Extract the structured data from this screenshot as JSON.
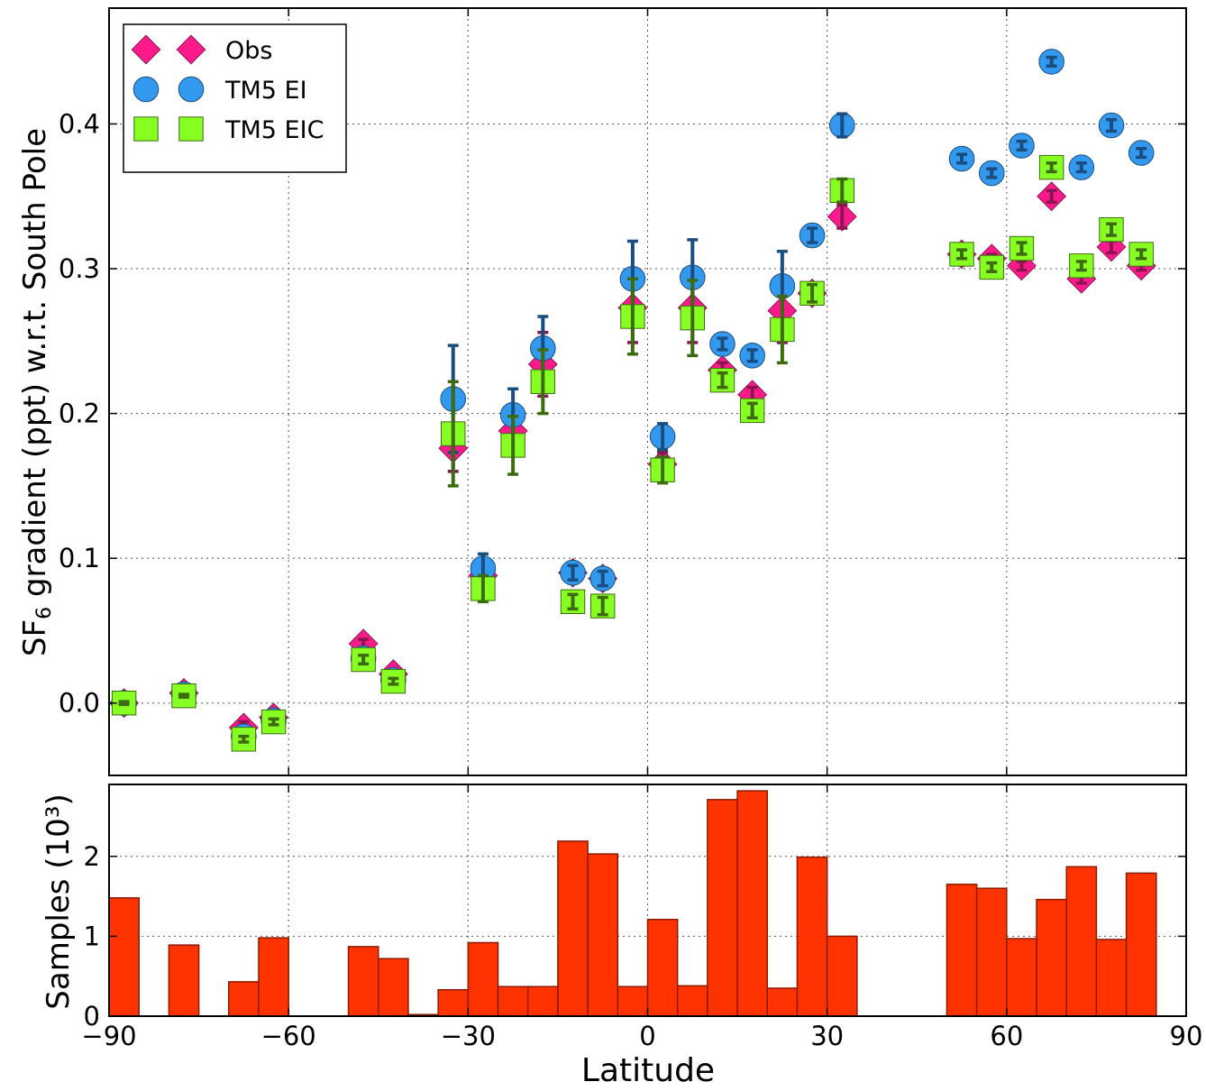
{
  "chart_data": [
    {
      "type": "scatter",
      "ylabel_pre": "SF",
      "ylabel_sub": "6",
      "ylabel_post": " gradient (ppt) w.r.t. South Pole",
      "xlim": [
        -90,
        90
      ],
      "ylim": [
        -0.05,
        0.48
      ],
      "yticks": [
        0.0,
        0.1,
        0.2,
        0.3,
        0.4
      ],
      "ytick_labels": [
        "0.0",
        "0.1",
        "0.2",
        "0.3",
        "0.4"
      ],
      "grid": true,
      "legend_position": "top-left",
      "series": [
        {
          "name": "Obs",
          "marker": "diamond",
          "color": "#ff1a8c",
          "edge": "#8b1550",
          "err_color": "#8b1550",
          "points": [
            {
              "x": -87.5,
              "y": 0.0,
              "e": 0.002
            },
            {
              "x": -77.5,
              "y": 0.007,
              "e": 0.002
            },
            {
              "x": -67.5,
              "y": -0.017,
              "e": 0.004
            },
            {
              "x": -62.5,
              "y": -0.01,
              "e": 0.003
            },
            {
              "x": -47.5,
              "y": 0.041,
              "e": 0.003
            },
            {
              "x": -42.5,
              "y": 0.02,
              "e": 0.002
            },
            {
              "x": -32.5,
              "y": 0.176,
              "e": 0.016
            },
            {
              "x": -27.5,
              "y": 0.088,
              "e": 0.006
            },
            {
              "x": -22.5,
              "y": 0.188,
              "e": 0.008
            },
            {
              "x": -17.5,
              "y": 0.234,
              "e": 0.022
            },
            {
              "x": -12.5,
              "y": 0.09,
              "e": 0.004
            },
            {
              "x": -7.5,
              "y": 0.086,
              "e": 0.004
            },
            {
              "x": -2.5,
              "y": 0.273,
              "e": 0.024
            },
            {
              "x": 2.5,
              "y": 0.165,
              "e": 0.008
            },
            {
              "x": 7.5,
              "y": 0.273,
              "e": 0.024
            },
            {
              "x": 12.5,
              "y": 0.23,
              "e": 0.005
            },
            {
              "x": 17.5,
              "y": 0.213,
              "e": 0.005
            },
            {
              "x": 22.5,
              "y": 0.271,
              "e": 0.022
            },
            {
              "x": 27.5,
              "y": 0.283,
              "e": 0.004
            },
            {
              "x": 32.5,
              "y": 0.336,
              "e": 0.008
            },
            {
              "x": 52.5,
              "y": 0.31,
              "e": 0.003
            },
            {
              "x": 57.5,
              "y": 0.307,
              "e": 0.003
            },
            {
              "x": 62.5,
              "y": 0.302,
              "e": 0.003
            },
            {
              "x": 67.5,
              "y": 0.35,
              "e": 0.004
            },
            {
              "x": 72.5,
              "y": 0.293,
              "e": 0.003
            },
            {
              "x": 77.5,
              "y": 0.315,
              "e": 0.004
            },
            {
              "x": 82.5,
              "y": 0.302,
              "e": 0.003
            }
          ]
        },
        {
          "name": "TM5 EI",
          "marker": "circle",
          "color": "#3399ee",
          "edge": "#1a4d80",
          "err_color": "#1a4d80",
          "points": [
            {
              "x": -87.5,
              "y": 0.0,
              "e": 0.001
            },
            {
              "x": -77.5,
              "y": 0.006,
              "e": 0.001
            },
            {
              "x": -67.5,
              "y": -0.023,
              "e": 0.002
            },
            {
              "x": -62.5,
              "y": -0.012,
              "e": 0.002
            },
            {
              "x": -47.5,
              "y": 0.031,
              "e": 0.002
            },
            {
              "x": -42.5,
              "y": 0.016,
              "e": 0.002
            },
            {
              "x": -32.5,
              "y": 0.21,
              "e": 0.037
            },
            {
              "x": -27.5,
              "y": 0.093,
              "e": 0.01
            },
            {
              "x": -22.5,
              "y": 0.199,
              "e": 0.018
            },
            {
              "x": -17.5,
              "y": 0.245,
              "e": 0.022
            },
            {
              "x": -12.5,
              "y": 0.09,
              "e": 0.005
            },
            {
              "x": -7.5,
              "y": 0.086,
              "e": 0.005
            },
            {
              "x": -2.5,
              "y": 0.293,
              "e": 0.026
            },
            {
              "x": 2.5,
              "y": 0.184,
              "e": 0.009
            },
            {
              "x": 7.5,
              "y": 0.294,
              "e": 0.026
            },
            {
              "x": 12.5,
              "y": 0.248,
              "e": 0.004
            },
            {
              "x": 17.5,
              "y": 0.24,
              "e": 0.004
            },
            {
              "x": 22.5,
              "y": 0.288,
              "e": 0.024
            },
            {
              "x": 27.5,
              "y": 0.323,
              "e": 0.005
            },
            {
              "x": 32.5,
              "y": 0.399,
              "e": 0.008
            },
            {
              "x": 52.5,
              "y": 0.376,
              "e": 0.003
            },
            {
              "x": 57.5,
              "y": 0.366,
              "e": 0.003
            },
            {
              "x": 62.5,
              "y": 0.385,
              "e": 0.003
            },
            {
              "x": 67.5,
              "y": 0.443,
              "e": 0.003
            },
            {
              "x": 72.5,
              "y": 0.37,
              "e": 0.003
            },
            {
              "x": 77.5,
              "y": 0.399,
              "e": 0.004
            },
            {
              "x": 82.5,
              "y": 0.38,
              "e": 0.003
            }
          ]
        },
        {
          "name": "TM5 EIC",
          "marker": "square",
          "color": "#88ff22",
          "edge": "#3d6b0f",
          "err_color": "#3d6b0f",
          "points": [
            {
              "x": -87.5,
              "y": 0.0,
              "e": 0.001
            },
            {
              "x": -77.5,
              "y": 0.005,
              "e": 0.001
            },
            {
              "x": -67.5,
              "y": -0.025,
              "e": 0.002
            },
            {
              "x": -62.5,
              "y": -0.013,
              "e": 0.002
            },
            {
              "x": -47.5,
              "y": 0.03,
              "e": 0.003
            },
            {
              "x": -42.5,
              "y": 0.015,
              "e": 0.002
            },
            {
              "x": -32.5,
              "y": 0.186,
              "e": 0.036
            },
            {
              "x": -27.5,
              "y": 0.079,
              "e": 0.009
            },
            {
              "x": -22.5,
              "y": 0.178,
              "e": 0.02
            },
            {
              "x": -17.5,
              "y": 0.222,
              "e": 0.022
            },
            {
              "x": -12.5,
              "y": 0.07,
              "e": 0.005
            },
            {
              "x": -7.5,
              "y": 0.067,
              "e": 0.006
            },
            {
              "x": -2.5,
              "y": 0.267,
              "e": 0.026
            },
            {
              "x": 2.5,
              "y": 0.161,
              "e": 0.009
            },
            {
              "x": 7.5,
              "y": 0.266,
              "e": 0.026
            },
            {
              "x": 12.5,
              "y": 0.223,
              "e": 0.005
            },
            {
              "x": 17.5,
              "y": 0.202,
              "e": 0.005
            },
            {
              "x": 22.5,
              "y": 0.258,
              "e": 0.023
            },
            {
              "x": 27.5,
              "y": 0.283,
              "e": 0.006
            },
            {
              "x": 32.5,
              "y": 0.354,
              "e": 0.008
            },
            {
              "x": 52.5,
              "y": 0.31,
              "e": 0.003
            },
            {
              "x": 57.5,
              "y": 0.301,
              "e": 0.003
            },
            {
              "x": 62.5,
              "y": 0.314,
              "e": 0.004
            },
            {
              "x": 67.5,
              "y": 0.37,
              "e": 0.003
            },
            {
              "x": 72.5,
              "y": 0.302,
              "e": 0.003
            },
            {
              "x": 77.5,
              "y": 0.327,
              "e": 0.004
            },
            {
              "x": 82.5,
              "y": 0.31,
              "e": 0.003
            }
          ]
        }
      ]
    },
    {
      "type": "bar",
      "ylabel": "Samples (10³)",
      "xlabel": "Latitude",
      "xlim": [
        -90,
        90
      ],
      "ylim": [
        0,
        2.9
      ],
      "xticks": [
        -90,
        -60,
        -30,
        0,
        30,
        60,
        90
      ],
      "xtick_labels": [
        "−90",
        "−60",
        "−30",
        "0",
        "30",
        "60",
        "90"
      ],
      "yticks": [
        0,
        1,
        2
      ],
      "ytick_labels": [
        "0",
        "1",
        "2"
      ],
      "grid": true,
      "bar_color": "#ff3300",
      "bar_edge": "#8b1a00",
      "bin_width": 5,
      "bins": [
        {
          "x0": -90,
          "value": 1.48
        },
        {
          "x0": -85,
          "value": 0
        },
        {
          "x0": -80,
          "value": 0.89
        },
        {
          "x0": -75,
          "value": 0
        },
        {
          "x0": -70,
          "value": 0.43
        },
        {
          "x0": -65,
          "value": 0.98
        },
        {
          "x0": -60,
          "value": 0
        },
        {
          "x0": -55,
          "value": 0
        },
        {
          "x0": -50,
          "value": 0.87
        },
        {
          "x0": -45,
          "value": 0.72
        },
        {
          "x0": -40,
          "value": 0.02
        },
        {
          "x0": -35,
          "value": 0.33
        },
        {
          "x0": -30,
          "value": 0.92
        },
        {
          "x0": -25,
          "value": 0.37
        },
        {
          "x0": -20,
          "value": 0.37
        },
        {
          "x0": -15,
          "value": 2.19
        },
        {
          "x0": -10,
          "value": 2.03
        },
        {
          "x0": -5,
          "value": 0.37
        },
        {
          "x0": 0,
          "value": 1.21
        },
        {
          "x0": 5,
          "value": 0.38
        },
        {
          "x0": 10,
          "value": 2.71
        },
        {
          "x0": 15,
          "value": 2.82
        },
        {
          "x0": 20,
          "value": 0.35
        },
        {
          "x0": 25,
          "value": 1.99
        },
        {
          "x0": 30,
          "value": 1.0
        },
        {
          "x0": 35,
          "value": 0
        },
        {
          "x0": 40,
          "value": 0
        },
        {
          "x0": 45,
          "value": 0
        },
        {
          "x0": 50,
          "value": 1.65
        },
        {
          "x0": 55,
          "value": 1.6
        },
        {
          "x0": 60,
          "value": 0.97
        },
        {
          "x0": 65,
          "value": 1.46
        },
        {
          "x0": 70,
          "value": 1.87
        },
        {
          "x0": 75,
          "value": 0.96
        },
        {
          "x0": 80,
          "value": 1.79
        }
      ]
    }
  ]
}
